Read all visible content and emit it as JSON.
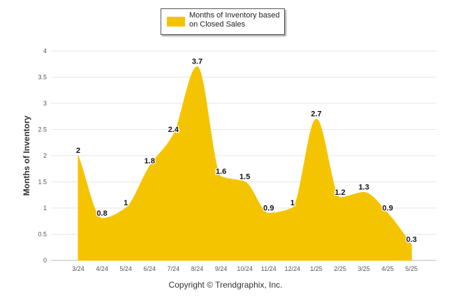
{
  "chart_data": {
    "type": "area",
    "categories": [
      "3/24",
      "4/24",
      "5/24",
      "6/24",
      "7/24",
      "8/24",
      "9/24",
      "10/24",
      "11/24",
      "12/24",
      "1/25",
      "2/25",
      "3/25",
      "4/25",
      "5/25"
    ],
    "series": [
      {
        "name": "Months of Inventory based on Closed Sales",
        "values": [
          2,
          0.8,
          1,
          1.8,
          2.4,
          3.7,
          1.6,
          1.5,
          0.9,
          1,
          2.7,
          1.2,
          1.3,
          0.9,
          0.3
        ],
        "color": "#f5c400"
      }
    ],
    "data_labels": [
      "2",
      "0.8",
      "1",
      "1.8",
      "2.4",
      "3.7",
      "1.6",
      "1.5",
      "0.9",
      "1",
      "2.7",
      "1.2",
      "1.3",
      "0.9",
      "0.3"
    ],
    "y_ticks": [
      0,
      0.5,
      1,
      1.5,
      2,
      2.5,
      3,
      3.5,
      4
    ],
    "y_tick_labels": [
      "0",
      "0.5",
      "1",
      "1.5",
      "2",
      "2.5",
      "3",
      "3.5",
      "4"
    ],
    "ylabel": "Months of Inventory",
    "ylim": [
      0,
      4
    ],
    "grid": true,
    "legend_position": "top-center"
  },
  "legend": {
    "label": "Months of Inventory based on Closed Sales",
    "color": "#f5c400"
  },
  "footer": {
    "copyright": "Copyright © Trendgraphix, Inc."
  }
}
